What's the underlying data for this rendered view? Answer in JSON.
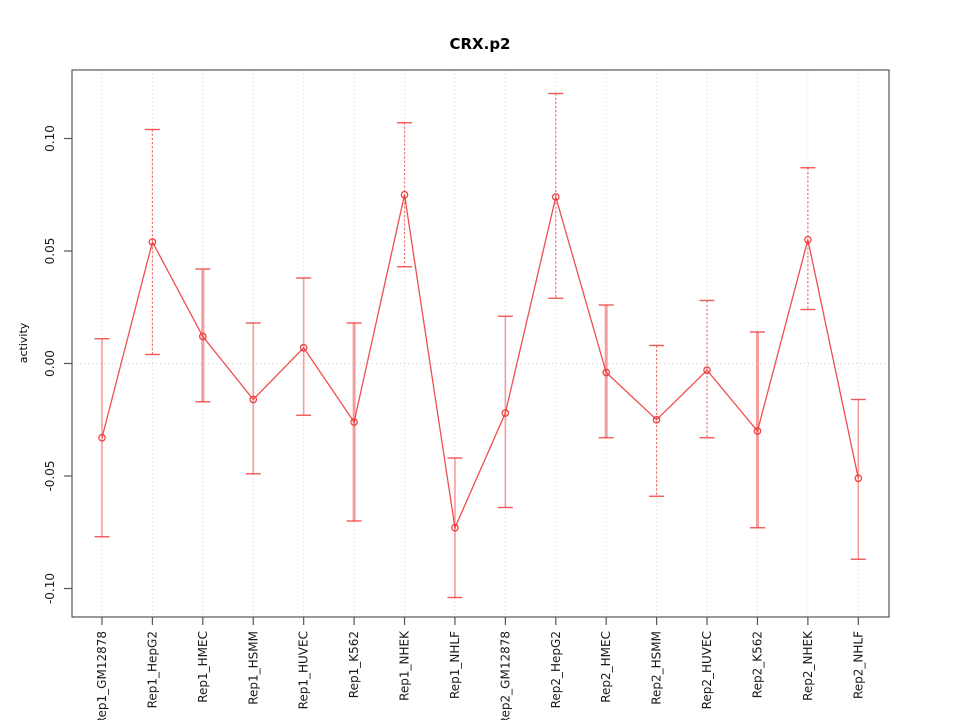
{
  "chart_data": {
    "type": "line",
    "title": "CRX.p2",
    "xlabel": "",
    "ylabel": "activity",
    "categories": [
      "Rep1_GM12878",
      "Rep1_HepG2",
      "Rep1_HMEC",
      "Rep1_HSMM",
      "Rep1_HUVEC",
      "Rep1_K562",
      "Rep1_NHEK",
      "Rep1_NHLF",
      "Rep2_GM12878",
      "Rep2_HepG2",
      "Rep2_HMEC",
      "Rep2_HSMM",
      "Rep2_HUVEC",
      "Rep2_K562",
      "Rep2_NHEK",
      "Rep2_NHLF"
    ],
    "series": [
      {
        "name": "activity",
        "values": [
          -0.033,
          0.054,
          0.012,
          -0.016,
          0.007,
          -0.026,
          0.075,
          -0.073,
          -0.022,
          0.074,
          -0.004,
          -0.025,
          -0.003,
          -0.03,
          0.055,
          -0.051
        ],
        "lower": [
          -0.077,
          0.004,
          -0.017,
          -0.049,
          -0.023,
          -0.07,
          0.043,
          -0.104,
          -0.064,
          0.029,
          -0.033,
          -0.059,
          -0.033,
          -0.073,
          0.024,
          -0.087
        ],
        "upper": [
          0.011,
          0.104,
          0.042,
          0.018,
          0.038,
          0.018,
          0.107,
          -0.042,
          0.021,
          0.12,
          0.026,
          0.008,
          0.028,
          0.014,
          0.087,
          -0.016
        ]
      }
    ],
    "y_ticks": [
      "-0.10",
      "-0.05",
      "0.00",
      "0.05",
      "0.10"
    ],
    "y_tick_values": [
      -0.1,
      -0.05,
      0.0,
      0.05,
      0.1
    ],
    "ylim": [
      -0.113,
      0.13
    ],
    "grid": "dotted vertical line at each category; dotted horizontal line at 0",
    "legend": "none",
    "marker": "open-circle",
    "stem_styles": [
      "solid",
      "dotted",
      "thick",
      "solid",
      "solid",
      "thick",
      "dotted",
      "solid",
      "solid",
      "dotted",
      "thick",
      "dotted",
      "dotted",
      "thick",
      "dotted",
      "solid"
    ],
    "line_color": "#ee3b3b",
    "errorbar_color": "#f59d9d",
    "grid_color": "#d4d4d4",
    "axis_color": "#555555",
    "text_color": "#1a1a1a"
  }
}
